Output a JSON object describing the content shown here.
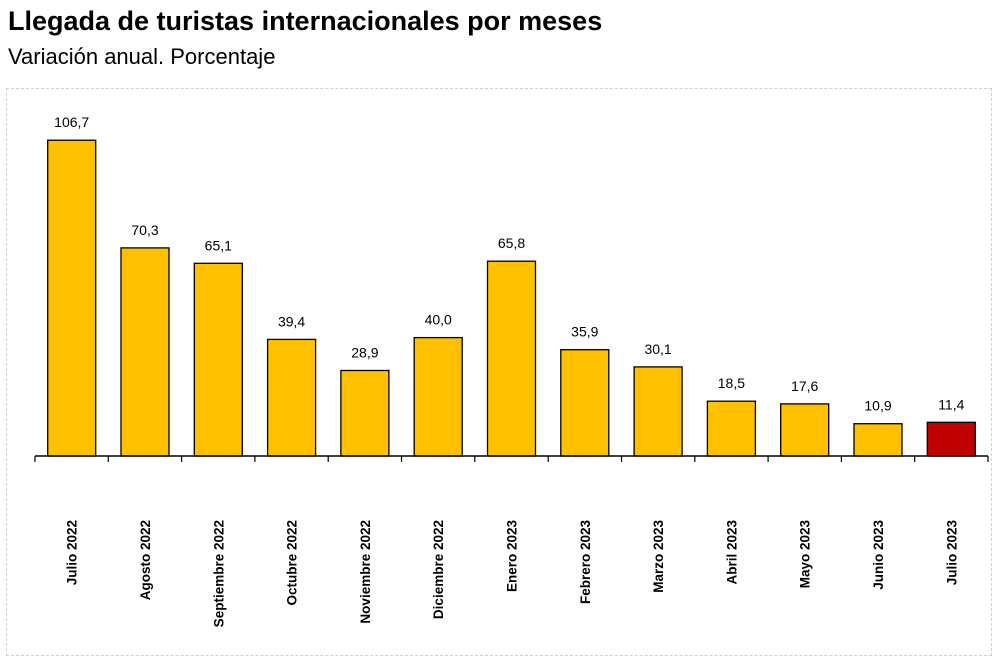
{
  "header": {
    "title": "Llegada de turistas internacionales por meses",
    "subtitle": "Variación anual. Porcentaje"
  },
  "chart_data": {
    "type": "bar",
    "title": "Llegada de turistas internacionales por meses",
    "subtitle": "Variación anual. Porcentaje",
    "categories": [
      "Julio 2022",
      "Agosto 2022",
      "Septiembre 2022",
      "Octubre 2022",
      "Noviembre 2022",
      "Diciembre 2022",
      "Enero 2023",
      "Febrero 2023",
      "Marzo 2023",
      "Abril 2023",
      "Mayo 2023",
      "Junio 2023",
      "Julio 2023"
    ],
    "values": [
      106.7,
      70.3,
      65.1,
      39.4,
      28.9,
      40.0,
      65.8,
      35.9,
      30.1,
      18.5,
      17.6,
      10.9,
      11.4
    ],
    "value_labels": [
      "106,7",
      "70,3",
      "65,1",
      "39,4",
      "28,9",
      "40,0",
      "65,8",
      "35,9",
      "30,1",
      "18,5",
      "17,6",
      "10,9",
      "11,4"
    ],
    "ylim": [
      0,
      110
    ],
    "grid": false,
    "legend": "none",
    "colors": {
      "bar": "#FFC000",
      "highlight": "#C00000",
      "outline": "#000000"
    },
    "highlight_index": 12
  }
}
